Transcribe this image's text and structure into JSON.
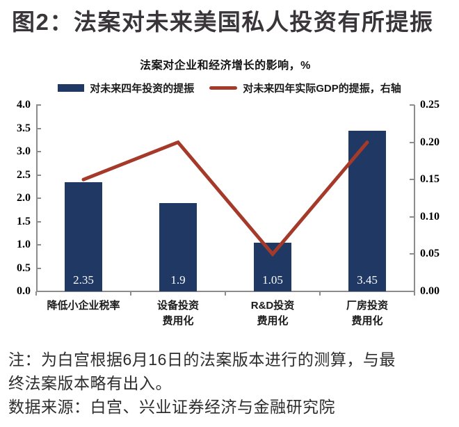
{
  "page_title": "图2：法案对未来美国私人投资有所提振",
  "legend": {
    "bar_label": "对未来四年投资的提振",
    "line_label": "对未来四年实际GDP的提振，右轴"
  },
  "chart_data": {
    "type": "bar+line",
    "title": "法案对企业和经济增长的影响，%",
    "categories": [
      [
        "降低小企业税率"
      ],
      [
        "设备投资",
        "费用化"
      ],
      [
        "R&D投资",
        "费用化"
      ],
      [
        "厂房投资",
        "费用化"
      ]
    ],
    "series": [
      {
        "name": "对未来四年投资的提振",
        "type": "bar",
        "axis": "left",
        "values": [
          2.35,
          1.9,
          1.05,
          3.45
        ],
        "labels": [
          "2.35",
          "1.9",
          "1.05",
          "3.45"
        ],
        "color": "#1f3864"
      },
      {
        "name": "对未来四年实际GDP的提振，右轴",
        "type": "line",
        "axis": "right",
        "values": [
          0.15,
          0.2,
          0.05,
          0.2
        ],
        "color": "#a53a2b"
      }
    ],
    "left_axis": {
      "min": 0,
      "max": 4,
      "tick_labels": [
        "4.0",
        "3.5",
        "3.0",
        "2.5",
        "2.0",
        "1.5",
        "1.0",
        "0.5",
        "0.0"
      ]
    },
    "right_axis": {
      "min": 0,
      "max": 0.25,
      "tick_labels": [
        "0.25",
        "0.20",
        "0.15",
        "0.10",
        "0.05",
        "0.00"
      ]
    },
    "grid": false,
    "legend_position": "top"
  },
  "notes": {
    "line1": "注：为白宫根据6月16日的法案版本进行的测算，与最",
    "line2": "终法案版本略有出入。",
    "source": "数据来源：白宫、兴业证券经济与金融研究院"
  }
}
